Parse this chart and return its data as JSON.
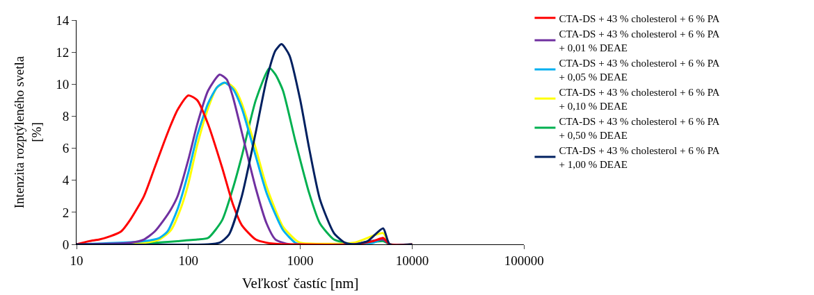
{
  "chart_data": {
    "type": "line",
    "xlabel": "Veľkosť častíc [nm]",
    "ylabel": "Intenzita rozptýleného svetla\n[%]",
    "log": "x",
    "grid": false,
    "legend": "right",
    "marker": "none",
    "line_style": "solid",
    "xlim": [
      10,
      100000
    ],
    "xticks": [
      10,
      100,
      1000,
      10000,
      100000
    ],
    "ylim": [
      0,
      14
    ],
    "yticks": [
      0,
      2,
      4,
      6,
      8,
      10,
      12,
      14
    ],
    "series": [
      {
        "name": "CTA-DS + 43 % cholesterol + 6 % PA",
        "color": "#ff0000",
        "x": [
          10,
          13,
          16,
          20,
          25,
          30,
          40,
          50,
          60,
          70,
          80,
          100,
          120,
          150,
          200,
          250,
          300,
          400,
          500,
          700,
          1000,
          3000,
          4500,
          5500,
          6300,
          10000
        ],
        "values": [
          0,
          0.2,
          0.3,
          0.5,
          0.8,
          1.5,
          3,
          4.8,
          6.3,
          7.5,
          8.4,
          9.3,
          9.0,
          7.5,
          4.8,
          2.5,
          1.2,
          0.3,
          0.1,
          0,
          0,
          0,
          0.2,
          0.4,
          0,
          0
        ]
      },
      {
        "name": "CTA-DS + 43 % cholesterol + 6 % PA\n+ 0,01 % DEAE",
        "color": "#7030a0",
        "x": [
          10,
          30,
          40,
          50,
          60,
          70,
          80,
          100,
          120,
          150,
          190,
          220,
          250,
          300,
          400,
          500,
          600,
          800,
          3000,
          5500,
          6300,
          10000
        ],
        "values": [
          0,
          0.1,
          0.3,
          0.8,
          1.5,
          2.2,
          3,
          5.3,
          7.5,
          9.6,
          10.6,
          10.3,
          9.2,
          7,
          3.5,
          1.3,
          0.3,
          0,
          0,
          0.3,
          0,
          0
        ]
      },
      {
        "name": "CTA-DS + 43 % cholesterol + 6 % PA\n+ 0,05 % DEAE",
        "color": "#00b0f0",
        "x": [
          10,
          40,
          55,
          65,
          80,
          100,
          120,
          150,
          180,
          210,
          250,
          300,
          400,
          500,
          700,
          900,
          1000,
          4500,
          5500
        ],
        "values": [
          0,
          0.2,
          0.4,
          0.8,
          2.2,
          4.5,
          6.8,
          8.8,
          9.8,
          10.1,
          9.7,
          8.5,
          5.5,
          3.2,
          0.9,
          0.1,
          0,
          0.1,
          0.4
        ]
      },
      {
        "name": "CTA-DS + 43 % cholesterol + 6 % PA\n+ 0,10 % DEAE",
        "color": "#ffff00",
        "x": [
          10,
          40,
          55,
          70,
          85,
          100,
          120,
          150,
          180,
          220,
          260,
          300,
          400,
          500,
          700,
          900,
          1000,
          3000,
          5500,
          6300,
          10000
        ],
        "values": [
          0,
          0.1,
          0.3,
          0.9,
          2.2,
          3.8,
          6.2,
          8.5,
          9.8,
          10.1,
          9.7,
          8.8,
          6,
          3.6,
          1.1,
          0.3,
          0.1,
          0.1,
          0.7,
          0,
          0
        ]
      },
      {
        "name": "CTA-DS + 43 % cholesterol + 6 % PA\n+ 0,50 % DEAE",
        "color": "#00b050",
        "x": [
          10,
          50,
          80,
          120,
          150,
          200,
          250,
          300,
          400,
          530,
          600,
          700,
          900,
          1200,
          1500,
          2000,
          2500,
          3000,
          5500,
          6300,
          10000
        ],
        "values": [
          0,
          0.1,
          0.2,
          0.3,
          0.4,
          1.5,
          3.5,
          5.5,
          9,
          11,
          10.6,
          9.6,
          6.5,
          3.2,
          1.3,
          0.3,
          0.1,
          0,
          0.2,
          0,
          0
        ]
      },
      {
        "name": "CTA-DS + 43 % cholesterol + 6 % PA\n+ 1,00 % DEAE",
        "color": "#002060",
        "x": [
          10,
          150,
          190,
          230,
          300,
          400,
          500,
          600,
          680,
          800,
          1000,
          1200,
          1500,
          2000,
          2500,
          3000,
          4000,
          5500,
          6300,
          10000
        ],
        "values": [
          0,
          0,
          0.1,
          0.6,
          3,
          7,
          10.3,
          12.1,
          12.5,
          11.8,
          9,
          6,
          2.8,
          0.7,
          0.1,
          0,
          0.2,
          1.0,
          0,
          0
        ]
      }
    ]
  }
}
